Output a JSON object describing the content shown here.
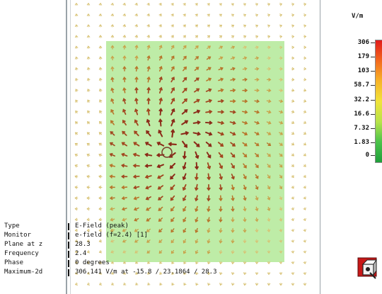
{
  "legend": {
    "unit": "V/m",
    "ticks": [
      "306",
      "179",
      "103",
      "58.7",
      "32.2",
      "16.6",
      "7.32",
      "1.83",
      "0"
    ],
    "colors": [
      "#e11b1b",
      "#f36a1e",
      "#f7b227",
      "#f1e33a",
      "#b7e34a",
      "#4cc44a",
      "#1f9f3b"
    ]
  },
  "info": {
    "rows": [
      {
        "label": "Type",
        "value": "E-Field (peak)"
      },
      {
        "label": "Monitor",
        "value": "e-field (f=2.4) [1]"
      },
      {
        "label": "Plane at z",
        "value": "28.3"
      },
      {
        "label": "Frequency",
        "value": "2.4"
      },
      {
        "label": "Phase",
        "value": "0 degrees"
      },
      {
        "label": "Maximum-2d",
        "value": "306.141 V/m at -15.8 / 23.1864 / 28.3"
      }
    ]
  },
  "icons": {
    "tool": "axis-orientation-icon"
  }
}
